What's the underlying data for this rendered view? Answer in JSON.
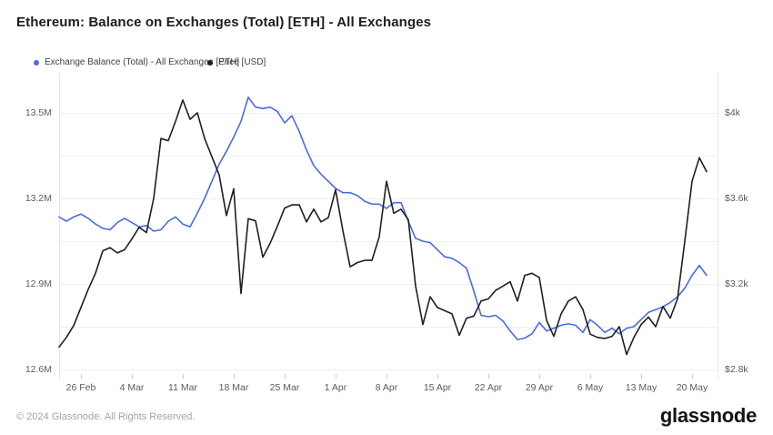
{
  "header": {
    "title": "Ethereum: Balance on Exchanges (Total) [ETH] - All Exchanges"
  },
  "legend": [
    {
      "label": "Exchange Balance (Total) - All Exchanges [ETH]",
      "color": "#4a6be0"
    },
    {
      "label": "Price [USD]",
      "color": "#1e1f23"
    }
  ],
  "footer": {
    "copyright": "© 2024 Glassnode. All Rights Reserved.",
    "brand": "glassnode"
  },
  "chart_data": {
    "type": "line",
    "title": "Ethereum: Balance on Exchanges (Total) [ETH] - All Exchanges",
    "grid": true,
    "legend_position": "top-left",
    "x": [
      "2024-02-23",
      "2024-02-24",
      "2024-02-25",
      "2024-02-26",
      "2024-02-27",
      "2024-02-28",
      "2024-02-29",
      "2024-03-01",
      "2024-03-02",
      "2024-03-03",
      "2024-03-04",
      "2024-03-05",
      "2024-03-06",
      "2024-03-07",
      "2024-03-08",
      "2024-03-09",
      "2024-03-10",
      "2024-03-11",
      "2024-03-12",
      "2024-03-13",
      "2024-03-14",
      "2024-03-15",
      "2024-03-16",
      "2024-03-17",
      "2024-03-18",
      "2024-03-19",
      "2024-03-20",
      "2024-03-21",
      "2024-03-22",
      "2024-03-23",
      "2024-03-24",
      "2024-03-25",
      "2024-03-26",
      "2024-03-27",
      "2024-03-28",
      "2024-03-29",
      "2024-03-30",
      "2024-03-31",
      "2024-04-01",
      "2024-04-02",
      "2024-04-03",
      "2024-04-04",
      "2024-04-05",
      "2024-04-06",
      "2024-04-07",
      "2024-04-08",
      "2024-04-09",
      "2024-04-10",
      "2024-04-11",
      "2024-04-12",
      "2024-04-13",
      "2024-04-14",
      "2024-04-15",
      "2024-04-16",
      "2024-04-17",
      "2024-04-18",
      "2024-04-19",
      "2024-04-20",
      "2024-04-21",
      "2024-04-22",
      "2024-04-23",
      "2024-04-24",
      "2024-04-25",
      "2024-04-26",
      "2024-04-27",
      "2024-04-28",
      "2024-04-29",
      "2024-04-30",
      "2024-05-01",
      "2024-05-02",
      "2024-05-03",
      "2024-05-04",
      "2024-05-05",
      "2024-05-06",
      "2024-05-07",
      "2024-05-08",
      "2024-05-09",
      "2024-05-10",
      "2024-05-11",
      "2024-05-12",
      "2024-05-13",
      "2024-05-14",
      "2024-05-15",
      "2024-05-16",
      "2024-05-17",
      "2024-05-18",
      "2024-05-19",
      "2024-05-20",
      "2024-05-21",
      "2024-05-22"
    ],
    "x_ticks": [
      {
        "index": 3,
        "label": "26 Feb"
      },
      {
        "index": 10,
        "label": "4 Mar"
      },
      {
        "index": 17,
        "label": "11 Mar"
      },
      {
        "index": 24,
        "label": "18 Mar"
      },
      {
        "index": 31,
        "label": "25 Mar"
      },
      {
        "index": 38,
        "label": "1 Apr"
      },
      {
        "index": 45,
        "label": "8 Apr"
      },
      {
        "index": 52,
        "label": "15 Apr"
      },
      {
        "index": 59,
        "label": "22 Apr"
      },
      {
        "index": 66,
        "label": "29 Apr"
      },
      {
        "index": 73,
        "label": "6 May"
      },
      {
        "index": 80,
        "label": "13 May"
      },
      {
        "index": 87,
        "label": "20 May"
      }
    ],
    "y_left": {
      "unit": "million ETH",
      "labels": [
        "13.5M",
        "13.2M",
        "12.9M",
        "12.6M"
      ],
      "values": [
        13.5,
        13.2,
        12.9,
        12.6
      ]
    },
    "y_right": {
      "unit": "USD",
      "labels": [
        "$4k",
        "$3.6k",
        "$3.2k",
        "$2.8k"
      ],
      "values": [
        4000,
        3600,
        3200,
        2800
      ]
    },
    "series": [
      {
        "name": "Exchange Balance (Total) - All Exchanges [ETH]",
        "axis": "left",
        "unit": "million ETH",
        "color": "#4a6be0",
        "values": [
          13.135,
          13.12,
          13.135,
          13.145,
          13.13,
          13.11,
          13.095,
          13.09,
          13.115,
          13.13,
          13.115,
          13.1,
          13.105,
          13.085,
          13.09,
          13.12,
          13.135,
          13.11,
          13.1,
          13.148,
          13.2,
          13.26,
          13.32,
          13.365,
          13.415,
          13.47,
          13.555,
          13.52,
          13.515,
          13.52,
          13.505,
          13.465,
          13.49,
          13.435,
          13.37,
          13.315,
          13.285,
          13.26,
          13.235,
          13.22,
          13.22,
          13.21,
          13.19,
          13.18,
          13.18,
          13.165,
          13.185,
          13.185,
          13.12,
          13.06,
          13.05,
          13.045,
          13.02,
          12.995,
          12.99,
          12.975,
          12.955,
          12.875,
          12.79,
          12.785,
          12.79,
          12.77,
          12.735,
          12.705,
          12.71,
          12.725,
          12.765,
          12.735,
          12.745,
          12.755,
          12.76,
          12.755,
          12.73,
          12.775,
          12.755,
          12.73,
          12.745,
          12.725,
          12.745,
          12.75,
          12.775,
          12.8,
          12.81,
          12.82,
          12.835,
          12.855,
          12.885,
          12.93,
          12.965,
          12.93
        ]
      },
      {
        "name": "Price [USD]",
        "axis": "right",
        "unit": "USD",
        "color": "#1e1f23",
        "values": [
          2905,
          2950,
          3005,
          3090,
          3175,
          3250,
          3355,
          3370,
          3345,
          3360,
          3410,
          3465,
          3440,
          3600,
          3880,
          3870,
          3960,
          4060,
          3970,
          4000,
          3880,
          3795,
          3710,
          3520,
          3645,
          3155,
          3505,
          3495,
          3325,
          3390,
          3470,
          3555,
          3570,
          3570,
          3490,
          3550,
          3490,
          3510,
          3640,
          3450,
          3280,
          3300,
          3310,
          3310,
          3420,
          3680,
          3530,
          3550,
          3500,
          3190,
          3010,
          3140,
          3090,
          3075,
          3060,
          2960,
          3040,
          3050,
          3120,
          3130,
          3170,
          3190,
          3210,
          3120,
          3240,
          3250,
          3230,
          3030,
          2955,
          3060,
          3120,
          3140,
          3080,
          2965,
          2950,
          2945,
          2955,
          3000,
          2870,
          2950,
          3010,
          3045,
          3000,
          3095,
          3040,
          3130,
          3400,
          3680,
          3790,
          3725
        ]
      }
    ]
  }
}
